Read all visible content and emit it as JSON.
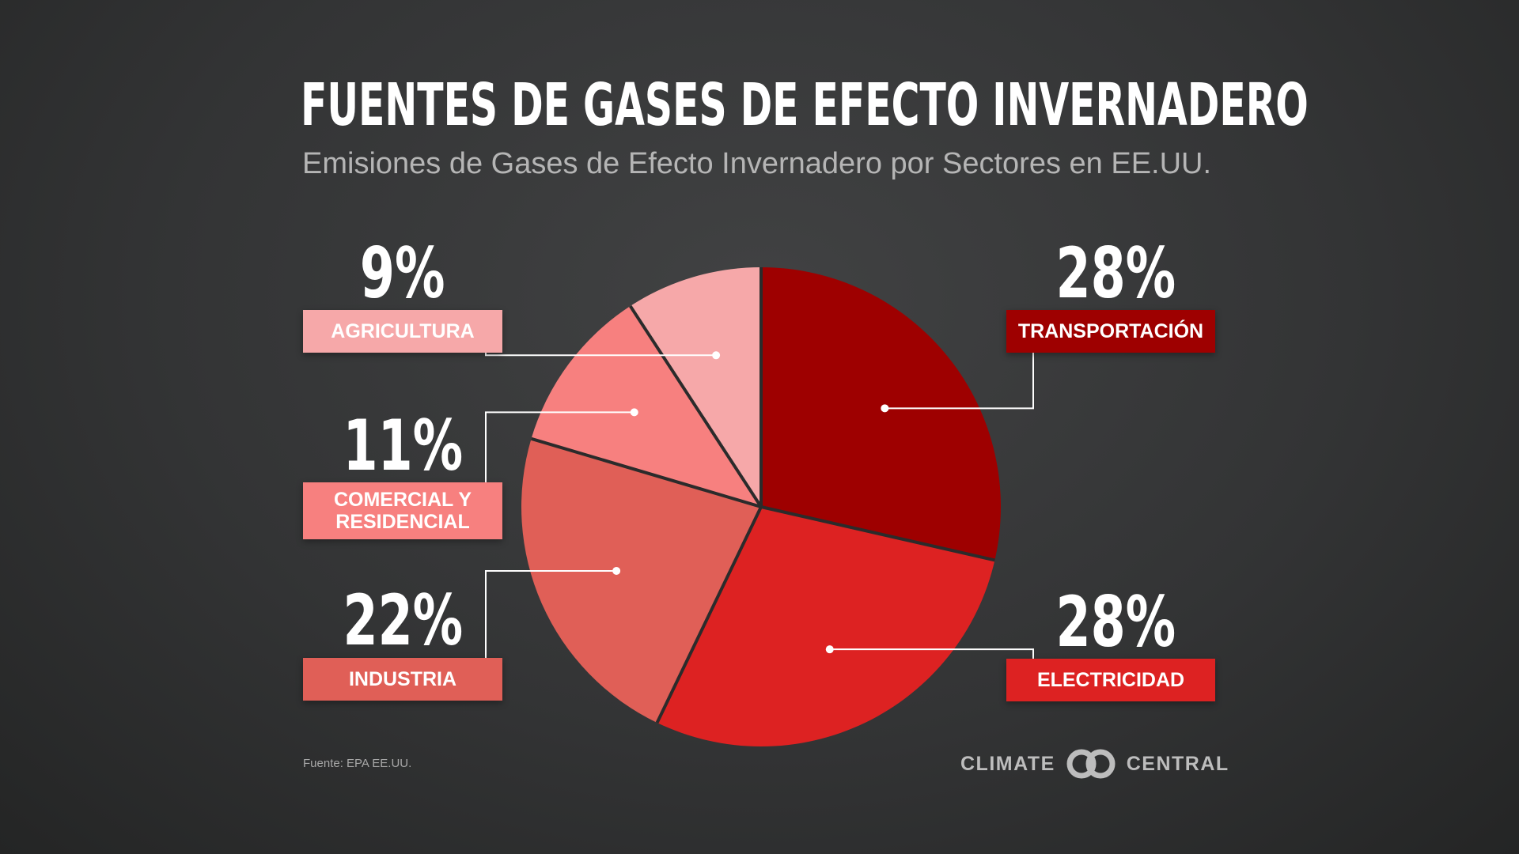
{
  "header": {
    "title": "FUENTES DE GASES DE EFECTO INVERNADERO",
    "subtitle": "Emisiones de Gases de Efecto Invernadero por Sectores en EE.UU."
  },
  "chart_data": {
    "type": "pie",
    "start": "12 o'clock",
    "direction": "clockwise",
    "slices": [
      {
        "label": "TRANSPORTACIÓN",
        "value": 28,
        "display": "28%",
        "color": "#9e0000"
      },
      {
        "label": "ELECTRICIDAD",
        "value": 28,
        "display": "28%",
        "color": "#dd2222"
      },
      {
        "label": "INDUSTRIA",
        "value": 22,
        "display": "22%",
        "color": "#e05f57"
      },
      {
        "label": "COMERCIAL Y RESIDENCIAL",
        "value": 11,
        "display": "11%",
        "color": "#f7807f"
      },
      {
        "label": "AGRICULTURA",
        "value": 9,
        "display": "9%",
        "color": "#f6a8a9"
      }
    ]
  },
  "footer": {
    "source": "Fuente: EPA EE.UU.",
    "brand_left": "CLIMATE",
    "brand_right": "CENTRAL"
  },
  "colors": {
    "background": "#333435",
    "slice_separator": "#2b2b2b",
    "leader_line": "#ffffff"
  },
  "icons": [
    "climate-central-logo-icon"
  ]
}
